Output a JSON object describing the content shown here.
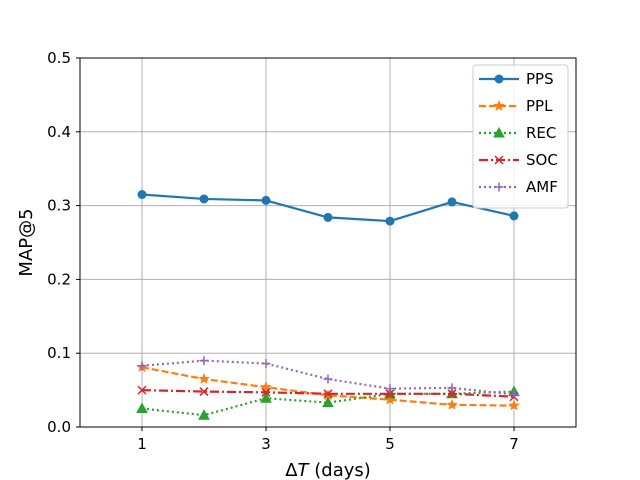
{
  "chart_data": {
    "type": "line",
    "xlabel_prefix": "Δ",
    "xlabel_var": "T",
    "xlabel_suffix": " (days)",
    "ylabel": "MAP@5",
    "xlim": [
      0,
      8
    ],
    "ylim": [
      0.0,
      0.5
    ],
    "xticks": [
      1,
      3,
      5,
      7
    ],
    "xtick_labels": [
      "1",
      "3",
      "5",
      "7"
    ],
    "yticks": [
      0.0,
      0.1,
      0.2,
      0.3,
      0.4,
      0.5
    ],
    "ytick_labels": [
      "0.0",
      "0.1",
      "0.2",
      "0.3",
      "0.4",
      "0.5"
    ],
    "grid": true,
    "legend_position": "top-right",
    "x": [
      1,
      2,
      3,
      4,
      5,
      6,
      7
    ],
    "series": [
      {
        "name": "PPS",
        "values": [
          0.315,
          0.309,
          0.307,
          0.284,
          0.279,
          0.305,
          0.286
        ],
        "color": "#1f77b4",
        "dash": "solid",
        "marker": "circle"
      },
      {
        "name": "PPL",
        "values": [
          0.081,
          0.065,
          0.054,
          0.043,
          0.037,
          0.03,
          0.029
        ],
        "color": "#ff7f0e",
        "dash": "dashed",
        "marker": "star"
      },
      {
        "name": "REC",
        "values": [
          0.025,
          0.016,
          0.039,
          0.033,
          0.045,
          0.045,
          0.048
        ],
        "color": "#2ca02c",
        "dash": "dotted",
        "marker": "triangle"
      },
      {
        "name": "SOC",
        "values": [
          0.05,
          0.048,
          0.047,
          0.045,
          0.045,
          0.045,
          0.041
        ],
        "color": "#d62728",
        "dash": "dashdot",
        "marker": "x"
      },
      {
        "name": "AMF",
        "values": [
          0.083,
          0.09,
          0.086,
          0.065,
          0.052,
          0.053,
          0.044
        ],
        "color": "#9467bd",
        "dash": "dotted",
        "marker": "plus"
      }
    ]
  }
}
